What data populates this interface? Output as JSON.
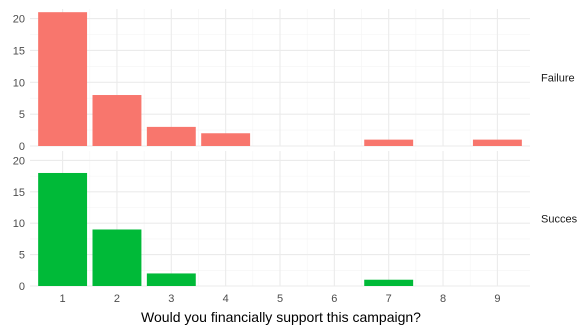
{
  "chart_data": {
    "type": "bar",
    "xlabel": "Would you financially support this campaign?",
    "ylabel": "",
    "x_categories": [
      "1",
      "2",
      "3",
      "4",
      "5",
      "6",
      "7",
      "8",
      "9"
    ],
    "ylim": [
      0,
      21.5
    ],
    "y_ticks": [
      0,
      5,
      10,
      15,
      20
    ],
    "grid": true,
    "legend": "none",
    "series": [
      {
        "name": "Failure",
        "color": "#F8766D",
        "x": [
          "1",
          "2",
          "3",
          "4",
          "7",
          "9"
        ],
        "values": [
          21,
          8,
          3,
          2,
          1,
          1
        ]
      },
      {
        "name": "Success",
        "color": "#00BA38",
        "x": [
          "1",
          "2",
          "3",
          "7"
        ],
        "values": [
          18,
          9,
          2,
          1
        ]
      }
    ]
  }
}
